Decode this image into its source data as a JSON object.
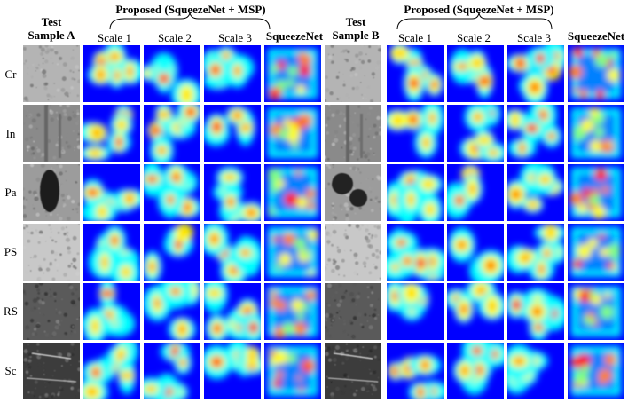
{
  "headers": {
    "test_a": "Test\nSample A",
    "test_a_line1": "Test",
    "test_a_line2": "Sample A",
    "proposed_a": "Proposed (SqueezeNet + MSP)",
    "squeezenet_a": "SqueezeNet",
    "test_b_line1": "Test",
    "test_b_line2": "Sample B",
    "proposed_b": "Proposed (SqueezeNet + MSP)",
    "squeezenet_b": "SqueezeNet"
  },
  "scales": [
    "Scale 1",
    "Scale 2",
    "Scale 3"
  ],
  "rows": [
    "Cr",
    "In",
    "Pa",
    "PS",
    "RS",
    "Sc"
  ],
  "colormap": [
    "#00008f",
    "#0000ff",
    "#0080ff",
    "#00ffff",
    "#80ff80",
    "#ffff00",
    "#ff8000",
    "#ff0000",
    "#800000"
  ],
  "texture_colors": {
    "Cr": "#b4b4b4",
    "In": "#8a8a8a",
    "Pa": "#9c9c9c",
    "PS": "#c8c8c8",
    "RS": "#5a5a5a",
    "Sc": "#3c3c3c"
  }
}
